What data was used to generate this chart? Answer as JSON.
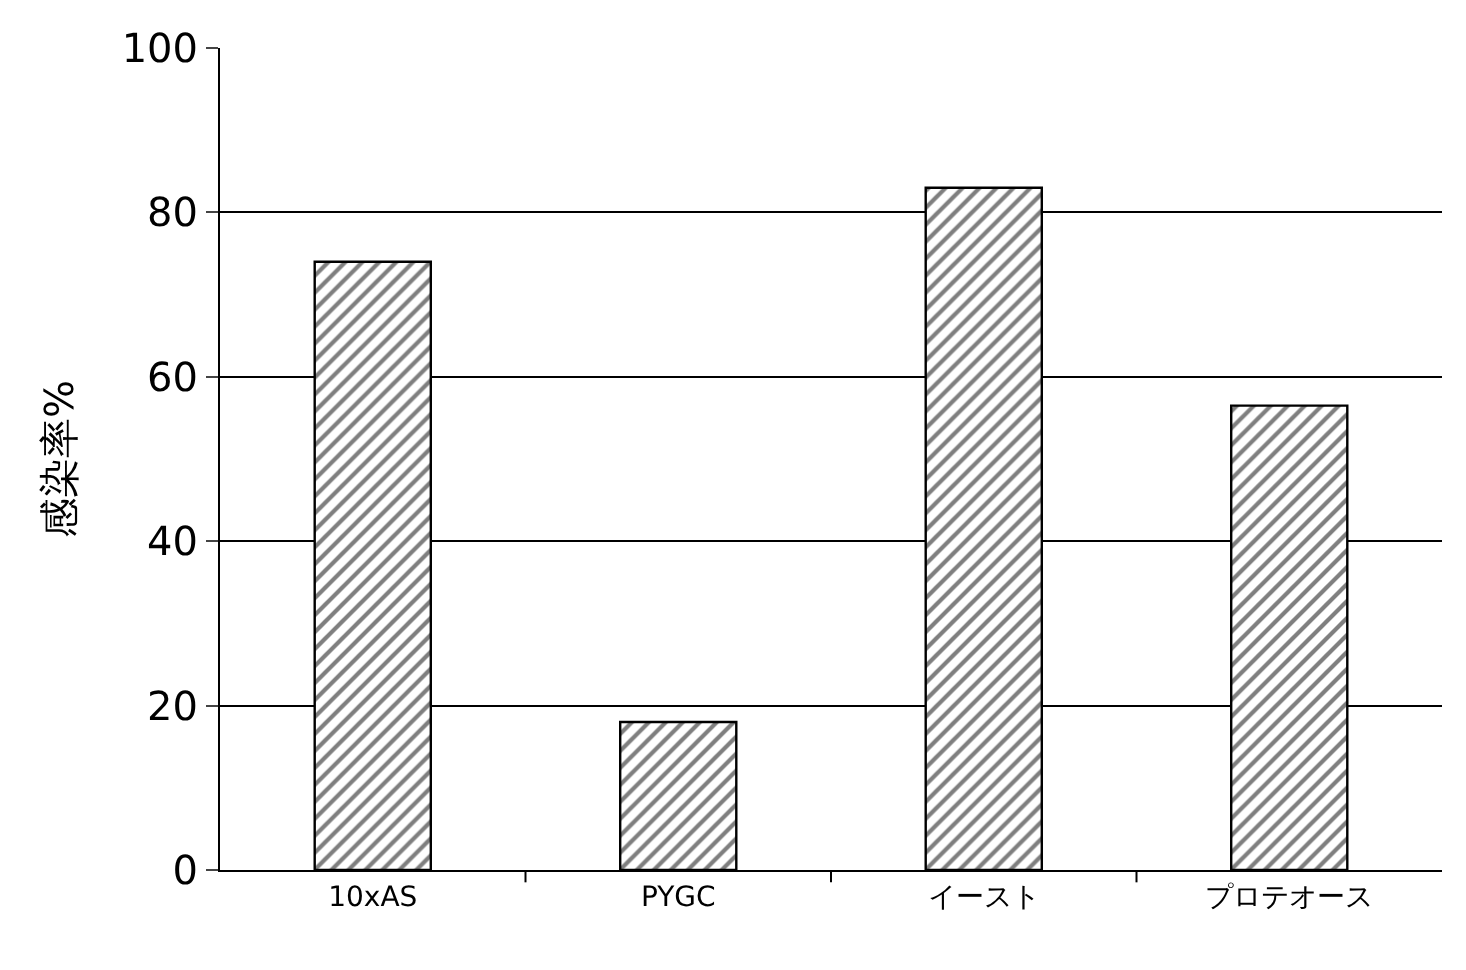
{
  "chart_data": {
    "type": "bar",
    "ylabel": "感染率%",
    "categories": [
      "10xAS",
      "PYGC",
      "イースト",
      "プロテオース"
    ],
    "values": [
      74,
      18,
      83,
      56.5
    ],
    "color": "#000000",
    "ylim": [
      0,
      100
    ],
    "yticks": [
      0,
      20,
      40,
      60,
      80,
      100
    ],
    "grid": "y"
  }
}
